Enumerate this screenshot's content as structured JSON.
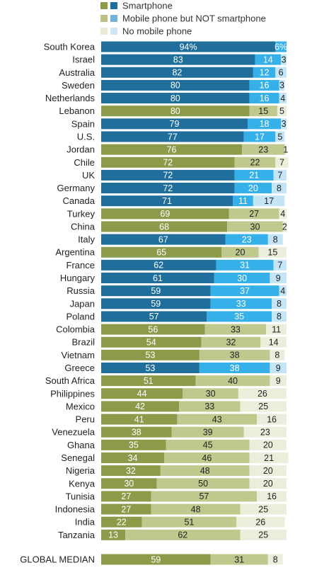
{
  "chart_data": {
    "type": "bar",
    "orientation": "horizontal",
    "stacked": true,
    "xlim": [
      0,
      100
    ],
    "grid": false,
    "legend_position": "top",
    "title": "",
    "xlabel": "",
    "ylabel": "",
    "legend": [
      {
        "label": "Smartphone",
        "swatches": [
          "#8d9a4a",
          "#1f6e9c"
        ]
      },
      {
        "label": "Mobile phone but NOT smartphone",
        "swatches": [
          "#b9c284",
          "#73b4d6"
        ]
      },
      {
        "label": "No mobile phone",
        "swatches": [
          "#e9ecd5",
          "#cfe5f2"
        ]
      }
    ],
    "colors": {
      "advanced": [
        "#1f6e9c",
        "#35b0e8",
        "#c4e5f6"
      ],
      "emerging": [
        "#8d9a4a",
        "#c0c88d",
        "#eceedc"
      ]
    },
    "rows": [
      {
        "category": "South Korea",
        "group": "advanced",
        "values": [
          94,
          6,
          null
        ],
        "labels": [
          "94%",
          "6%",
          ""
        ]
      },
      {
        "category": "Israel",
        "group": "advanced",
        "values": [
          83,
          14,
          3
        ],
        "labels": [
          "83",
          "14",
          "3"
        ]
      },
      {
        "category": "Australia",
        "group": "advanced",
        "values": [
          82,
          12,
          6
        ],
        "labels": [
          "82",
          "12",
          "6"
        ]
      },
      {
        "category": "Sweden",
        "group": "advanced",
        "values": [
          80,
          16,
          3
        ],
        "labels": [
          "80",
          "16",
          "3"
        ]
      },
      {
        "category": "Netherlands",
        "group": "advanced",
        "values": [
          80,
          16,
          4
        ],
        "labels": [
          "80",
          "16",
          "4"
        ]
      },
      {
        "category": "Lebanon",
        "group": "emerging",
        "values": [
          80,
          15,
          5
        ],
        "labels": [
          "80",
          "15",
          "5"
        ]
      },
      {
        "category": "Spain",
        "group": "advanced",
        "values": [
          79,
          18,
          3
        ],
        "labels": [
          "79",
          "18",
          "3"
        ]
      },
      {
        "category": "U.S.",
        "group": "advanced",
        "values": [
          77,
          17,
          5
        ],
        "labels": [
          "77",
          "17",
          "5"
        ]
      },
      {
        "category": "Jordan",
        "group": "emerging",
        "values": [
          76,
          23,
          1
        ],
        "labels": [
          "76",
          "23",
          "1"
        ]
      },
      {
        "category": "Chile",
        "group": "emerging",
        "values": [
          72,
          22,
          7
        ],
        "labels": [
          "72",
          "22",
          "7"
        ]
      },
      {
        "category": "UK",
        "group": "advanced",
        "values": [
          72,
          21,
          7
        ],
        "labels": [
          "72",
          "21",
          "7"
        ]
      },
      {
        "category": "Germany",
        "group": "advanced",
        "values": [
          72,
          20,
          8
        ],
        "labels": [
          "72",
          "20",
          "8"
        ]
      },
      {
        "category": "Canada",
        "group": "advanced",
        "values": [
          71,
          11,
          17
        ],
        "labels": [
          "71",
          "11",
          "17"
        ]
      },
      {
        "category": "Turkey",
        "group": "emerging",
        "values": [
          69,
          27,
          4
        ],
        "labels": [
          "69",
          "27",
          "4"
        ]
      },
      {
        "category": "China",
        "group": "emerging",
        "values": [
          68,
          30,
          2
        ],
        "labels": [
          "68",
          "30",
          "2"
        ]
      },
      {
        "category": "Italy",
        "group": "advanced",
        "values": [
          67,
          23,
          8
        ],
        "labels": [
          "67",
          "23",
          "8"
        ]
      },
      {
        "category": "Argentina",
        "group": "emerging",
        "values": [
          65,
          20,
          15
        ],
        "labels": [
          "65",
          "20",
          "15"
        ]
      },
      {
        "category": "France",
        "group": "advanced",
        "values": [
          62,
          31,
          7
        ],
        "labels": [
          "62",
          "31",
          "7"
        ]
      },
      {
        "category": "Hungary",
        "group": "advanced",
        "values": [
          61,
          30,
          9
        ],
        "labels": [
          "61",
          "30",
          "9"
        ]
      },
      {
        "category": "Russia",
        "group": "advanced",
        "values": [
          59,
          37,
          4
        ],
        "labels": [
          "59",
          "37",
          "4"
        ]
      },
      {
        "category": "Japan",
        "group": "advanced",
        "values": [
          59,
          33,
          8
        ],
        "labels": [
          "59",
          "33",
          "8"
        ]
      },
      {
        "category": "Poland",
        "group": "advanced",
        "values": [
          57,
          35,
          8
        ],
        "labels": [
          "57",
          "35",
          "8"
        ]
      },
      {
        "category": "Colombia",
        "group": "emerging",
        "values": [
          56,
          33,
          11
        ],
        "labels": [
          "56",
          "33",
          "11"
        ]
      },
      {
        "category": "Brazil",
        "group": "emerging",
        "values": [
          54,
          32,
          14
        ],
        "labels": [
          "54",
          "32",
          "14"
        ]
      },
      {
        "category": "Vietnam",
        "group": "emerging",
        "values": [
          53,
          38,
          8
        ],
        "labels": [
          "53",
          "38",
          "8"
        ]
      },
      {
        "category": "Greece",
        "group": "advanced",
        "values": [
          53,
          38,
          9
        ],
        "labels": [
          "53",
          "38",
          "9"
        ]
      },
      {
        "category": "South Africa",
        "group": "emerging",
        "values": [
          51,
          40,
          9
        ],
        "labels": [
          "51",
          "40",
          "9"
        ]
      },
      {
        "category": "Philippines",
        "group": "emerging",
        "values": [
          44,
          30,
          26
        ],
        "labels": [
          "44",
          "30",
          "26"
        ]
      },
      {
        "category": "Mexico",
        "group": "emerging",
        "values": [
          42,
          33,
          25
        ],
        "labels": [
          "42",
          "33",
          "25"
        ]
      },
      {
        "category": "Peru",
        "group": "emerging",
        "values": [
          41,
          43,
          16
        ],
        "labels": [
          "41",
          "43",
          "16"
        ]
      },
      {
        "category": "Venezuela",
        "group": "emerging",
        "values": [
          38,
          39,
          23
        ],
        "labels": [
          "38",
          "39",
          "23"
        ]
      },
      {
        "category": "Ghana",
        "group": "emerging",
        "values": [
          35,
          45,
          20
        ],
        "labels": [
          "35",
          "45",
          "20"
        ]
      },
      {
        "category": "Senegal",
        "group": "emerging",
        "values": [
          34,
          46,
          21
        ],
        "labels": [
          "34",
          "46",
          "21"
        ]
      },
      {
        "category": "Nigeria",
        "group": "emerging",
        "values": [
          32,
          48,
          20
        ],
        "labels": [
          "32",
          "48",
          "20"
        ]
      },
      {
        "category": "Kenya",
        "group": "emerging",
        "values": [
          30,
          50,
          20
        ],
        "labels": [
          "30",
          "50",
          "20"
        ]
      },
      {
        "category": "Tunisia",
        "group": "emerging",
        "values": [
          27,
          57,
          16
        ],
        "labels": [
          "27",
          "57",
          "16"
        ]
      },
      {
        "category": "Indonesia",
        "group": "emerging",
        "values": [
          27,
          48,
          25
        ],
        "labels": [
          "27",
          "48",
          "25"
        ]
      },
      {
        "category": "India",
        "group": "emerging",
        "values": [
          22,
          51,
          26
        ],
        "labels": [
          "22",
          "51",
          "26"
        ]
      },
      {
        "category": "Tanzania",
        "group": "emerging",
        "values": [
          13,
          62,
          25
        ],
        "labels": [
          "13",
          "62",
          "25"
        ]
      }
    ],
    "median": {
      "category": "GLOBAL MEDIAN",
      "group": "emerging",
      "values": [
        59,
        31,
        8
      ],
      "labels": [
        "59",
        "31",
        "8"
      ]
    }
  }
}
